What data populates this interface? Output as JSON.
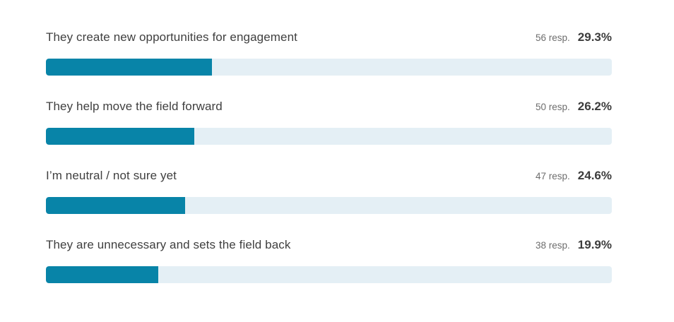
{
  "accent_color": "#0884a8",
  "track_color": "#e4eff5",
  "chart_data": {
    "type": "bar",
    "orientation": "horizontal",
    "title": "",
    "xlabel": "",
    "ylabel": "",
    "xlim": [
      0,
      100
    ],
    "grid": false,
    "legend": false,
    "categories": [
      "They create new opportunities for engagement",
      "They help move the field forward",
      "I’m neutral / not sure yet",
      "They are unnecessary and sets the field back"
    ],
    "series": [
      {
        "name": "respondents",
        "values": [
          56,
          50,
          47,
          38
        ]
      },
      {
        "name": "percentage",
        "values": [
          29.3,
          26.2,
          24.6,
          19.9
        ]
      }
    ],
    "rows": [
      {
        "label": "They create new opportunities for engagement",
        "resp_label": "56 resp.",
        "pct_label": "29.3%",
        "pct_value": 29.3
      },
      {
        "label": "They help move the field forward",
        "resp_label": "50 resp.",
        "pct_label": "26.2%",
        "pct_value": 26.2
      },
      {
        "label": "I’m neutral / not sure yet",
        "resp_label": "47 resp.",
        "pct_label": "24.6%",
        "pct_value": 24.6
      },
      {
        "label": "They are unnecessary and sets the field back",
        "resp_label": "38 resp.",
        "pct_label": "19.9%",
        "pct_value": 19.9
      }
    ]
  }
}
